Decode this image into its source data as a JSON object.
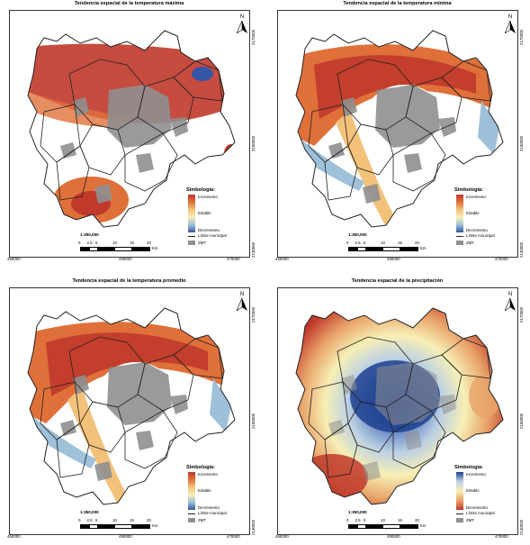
{
  "panels": [
    {
      "id": "tmax",
      "title": "Tendencia espacial de la temperatura máxima",
      "ramp": "warm",
      "show_scale_title": true
    },
    {
      "id": "tmin",
      "title": "Tendencia espacial de la temperatura mínima",
      "ramp": "warm",
      "show_scale_title": true
    },
    {
      "id": "tprom",
      "title": "Tendencia espacial de la temperatura promedio",
      "ramp": "warm",
      "show_scale_title": true
    },
    {
      "id": "precip",
      "title": "Tendencia espacial de la precipitación",
      "ramp": "wet",
      "show_scale_title": true
    }
  ],
  "axes": {
    "x_left": "460000",
    "x_mid": "490000",
    "x_right": "470000",
    "y_top": "2170000",
    "y_mid": "2150000",
    "y_bottom": "2130000"
  },
  "north_label": "N",
  "legend": {
    "title": "Simbología:",
    "increment": "Incremento",
    "stable": "Estable",
    "decrement": "Decremento",
    "municipal": "Límite municipal",
    "zmt": "ZMT"
  },
  "scale": {
    "ratio": "1:350,000",
    "ticks": [
      "0",
      "2.5",
      "5",
      "10",
      "15",
      "20"
    ],
    "unit": "Km"
  },
  "colors": {
    "increment": "#c0392b",
    "stable": "#f7efb5",
    "decrement": "#3556a6",
    "zmt": "#8f8f8f",
    "boundary": "#222222"
  }
}
